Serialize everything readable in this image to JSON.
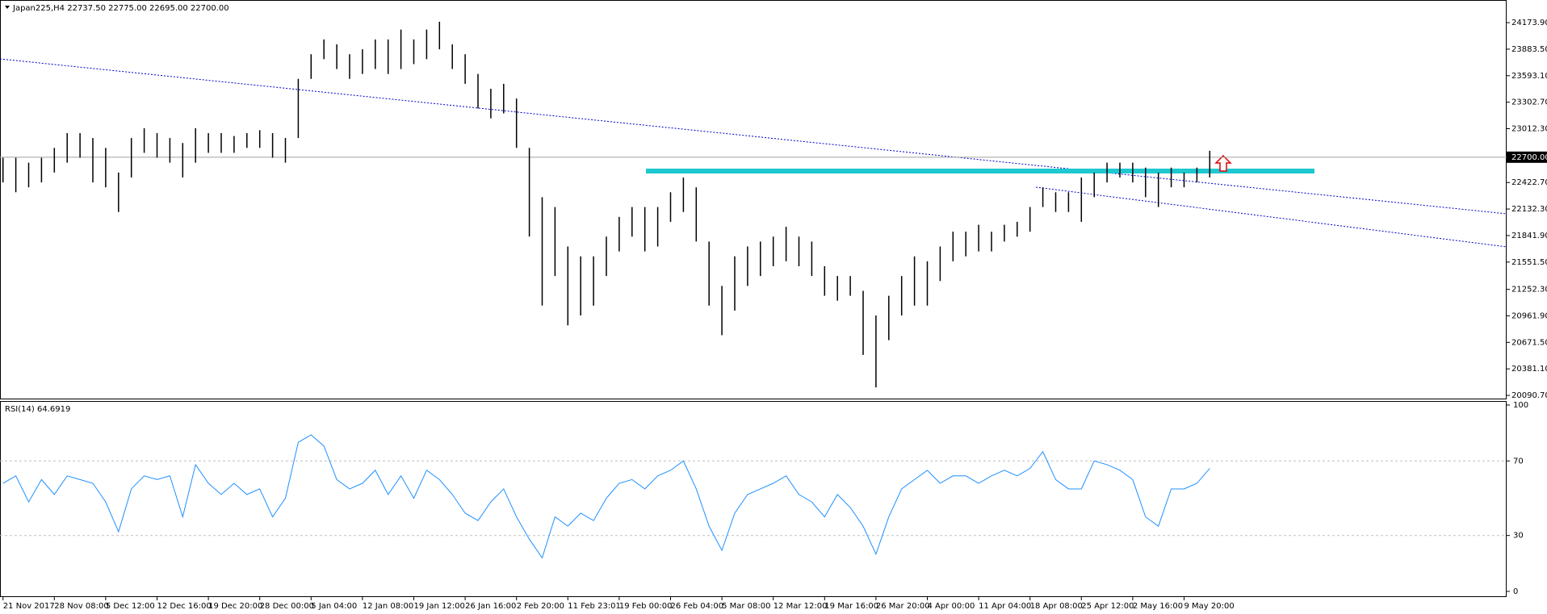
{
  "chart_data": [
    {
      "type": "ohlc",
      "title": "Japan225,H4  22737.50 22775.00 22695.00 22700.00",
      "categories": [
        "21 Nov 2017",
        null,
        null,
        null,
        "28 Nov 08:00",
        null,
        null,
        null,
        "5 Dec 12:00",
        null,
        null,
        null,
        "12 Dec 16:00",
        null,
        null,
        null,
        "19 Dec 20:00",
        null,
        null,
        null,
        "28 Dec 00:00",
        null,
        null,
        null,
        "5 Jan 04:00",
        null,
        null,
        null,
        "12 Jan 08:00",
        null,
        null,
        null,
        "19 Jan 12:00",
        null,
        null,
        null,
        "26 Jan 16:00",
        null,
        null,
        null,
        "2 Feb 20:00",
        null,
        null,
        null,
        "11 Feb 23:01",
        null,
        null,
        null,
        "19 Feb 00:00",
        null,
        null,
        null,
        "26 Feb 04:00",
        null,
        null,
        null,
        "5 Mar 08:00",
        null,
        null,
        null,
        "12 Mar 12:00",
        null,
        null,
        null,
        "19 Mar 16:00",
        null,
        null,
        null,
        "26 Mar 20:00",
        null,
        null,
        null,
        "4 Apr 00:00",
        null,
        null,
        null,
        "11 Apr 04:00",
        null,
        null,
        null,
        "18 Apr 08:00",
        null,
        null,
        null,
        "25 Apr 12:00",
        null,
        null,
        null,
        "2 May 16:00",
        null,
        null,
        null,
        "9 May 20:00",
        null,
        null
      ],
      "series": [
        {
          "color": "#000000",
          "low": [
            22424,
            22316,
            22370,
            22424,
            22532,
            22640,
            22694,
            22424,
            22370,
            22100,
            22478,
            22748,
            22694,
            22640,
            22478,
            22640,
            22748,
            22748,
            22748,
            22802,
            22802,
            22694,
            22640,
            22910,
            23558,
            23774,
            23666,
            23558,
            23612,
            23666,
            23612,
            23666,
            23720,
            23774,
            23882,
            23666,
            23504,
            23234,
            23126,
            23180,
            22802,
            21830,
            21074,
            21398,
            20858,
            20966,
            21074,
            21398,
            21668,
            21830,
            21668,
            21722,
            21992,
            22100,
            21776,
            21074,
            20750,
            21020,
            21290,
            21398,
            21506,
            21560,
            21506,
            21398,
            21182,
            21128,
            21182,
            20534,
            20178,
            20696,
            20966,
            21074,
            21074,
            21344,
            21560,
            21614,
            21668,
            21668,
            21776,
            21830,
            21884,
            22154,
            22100,
            22100,
            21992,
            22262,
            22424,
            22478,
            22424,
            22262,
            22154,
            22370,
            22370,
            22424,
            22478
          ],
          "high": [
            22694,
            22694,
            22640,
            22694,
            22802,
            22964,
            22964,
            22910,
            22802,
            22532,
            22910,
            23018,
            22964,
            22910,
            22856,
            23018,
            22964,
            22964,
            22932,
            22964,
            22996,
            22964,
            22910,
            23558,
            23828,
            23990,
            23936,
            23828,
            23882,
            23990,
            23990,
            24098,
            23990,
            24098,
            24184,
            23936,
            23828,
            23612,
            23450,
            23504,
            23342,
            22802,
            22262,
            22154,
            21722,
            21614,
            21614,
            21830,
            22046,
            22154,
            22154,
            22154,
            22316,
            22478,
            22370,
            21776,
            21290,
            21614,
            21722,
            21776,
            21830,
            21938,
            21830,
            21776,
            21506,
            21398,
            21398,
            21236,
            20966,
            21182,
            21398,
            21614,
            21560,
            21722,
            21884,
            21884,
            21960,
            21884,
            21960,
            21992,
            22154,
            22370,
            22316,
            22316,
            22478,
            22532,
            22640,
            22640,
            22640,
            22586,
            22532,
            22586,
            22532,
            22586,
            22770
          ]
        }
      ],
      "ylim": [
        20047,
        24422
      ],
      "yticks": [
        {
          "value": 24173.9,
          "label": "24173.90"
        },
        {
          "value": 23883.5,
          "label": "23883.50"
        },
        {
          "value": 23593.1,
          "label": "23593.10"
        },
        {
          "value": 23302.7,
          "label": "23302.70"
        },
        {
          "value": 23012.3,
          "label": "23012.30"
        },
        {
          "value": 22422.7,
          "label": "22422.70"
        },
        {
          "value": 22132.3,
          "label": "22132.30"
        },
        {
          "value": 21841.9,
          "label": "21841.90"
        },
        {
          "value": 21551.5,
          "label": "21551.50"
        },
        {
          "value": 21252.3,
          "label": "21252.30"
        },
        {
          "value": 20961.9,
          "label": "20961.90"
        },
        {
          "value": 20671.5,
          "label": "20671.50"
        },
        {
          "value": 20381.1,
          "label": "20381.10"
        },
        {
          "value": 20090.7,
          "label": "20090.70"
        }
      ],
      "price_line": {
        "value": 22700,
        "label": "22700.00"
      }
    },
    {
      "type": "line",
      "title": "RSI(14) 64.6919",
      "series": [
        {
          "color": "#1e90ff",
          "values": [
            58,
            62,
            48,
            60,
            52,
            62,
            60,
            58,
            48,
            32,
            55,
            62,
            60,
            62,
            40,
            68,
            58,
            52,
            58,
            52,
            55,
            40,
            50,
            80,
            84,
            78,
            60,
            55,
            58,
            65,
            52,
            62,
            50,
            65,
            60,
            52,
            42,
            38,
            48,
            55,
            40,
            28,
            18,
            40,
            35,
            42,
            38,
            50,
            58,
            60,
            55,
            62,
            65,
            70,
            55,
            35,
            22,
            42,
            52,
            55,
            58,
            62,
            52,
            48,
            40,
            52,
            45,
            35,
            20,
            40,
            55,
            60,
            65,
            58,
            62,
            62,
            58,
            62,
            65,
            62,
            66,
            75,
            60,
            55,
            55,
            70,
            68,
            65,
            60,
            40,
            35,
            55,
            55,
            58,
            66
          ]
        }
      ],
      "ylim": [
        0,
        100
      ],
      "yticks": [
        0,
        30,
        70,
        100
      ],
      "levels": [
        30,
        70
      ]
    }
  ]
}
